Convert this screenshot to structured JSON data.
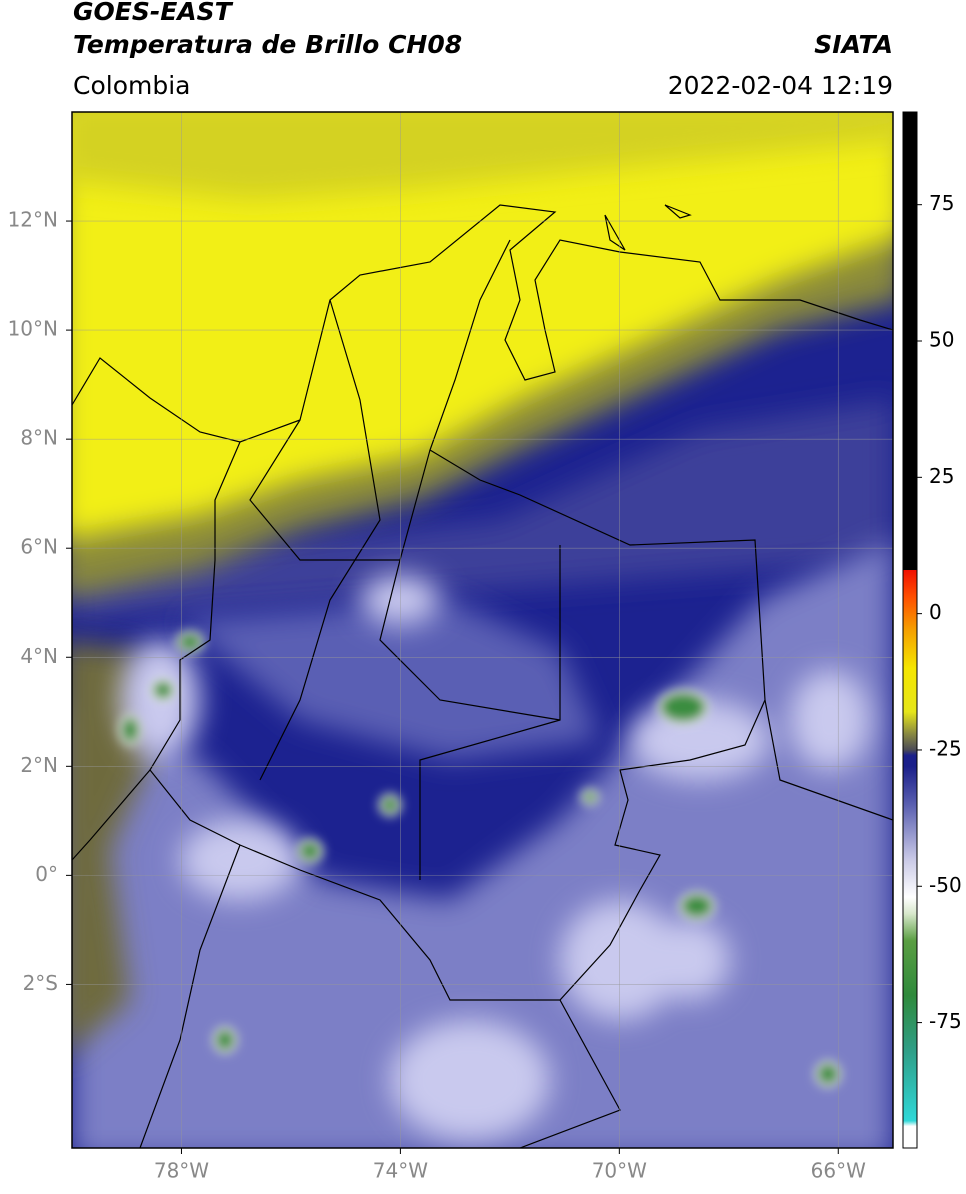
{
  "header": {
    "title": "GOES-EAST",
    "subtitle": "Temperatura de Brillo CH08",
    "source": "SIATA",
    "region": "Colombia",
    "timestamp": "2022-02-04 12:19"
  },
  "map": {
    "xlim": [
      -80,
      -65
    ],
    "ylim": [
      -5,
      14
    ],
    "grid": true,
    "xticks": [
      {
        "value": -78,
        "label": "78°W"
      },
      {
        "value": -74,
        "label": "74°W"
      },
      {
        "value": -70,
        "label": "70°W"
      },
      {
        "value": -66,
        "label": "66°W"
      }
    ],
    "yticks": [
      {
        "value": 12,
        "label": "12°N"
      },
      {
        "value": 10,
        "label": "10°N"
      },
      {
        "value": 8,
        "label": "8°N"
      },
      {
        "value": 6,
        "label": "6°N"
      },
      {
        "value": 4,
        "label": "4°N"
      },
      {
        "value": 2,
        "label": "2°N"
      },
      {
        "value": 0,
        "label": "0°"
      },
      {
        "value": -2,
        "label": "2°S"
      }
    ]
  },
  "colorbar": {
    "lim": [
      -98,
      92
    ],
    "ticks": [
      75,
      50,
      25,
      0,
      -25,
      -50,
      -75
    ],
    "stops": [
      {
        "value": -98,
        "color": "#ffffff"
      },
      {
        "value": -94,
        "color": "#ffffff"
      },
      {
        "value": -93,
        "color": "#2fd8d8"
      },
      {
        "value": -80,
        "color": "#2f9e86"
      },
      {
        "value": -70,
        "color": "#2f8a3c"
      },
      {
        "value": -60,
        "color": "#5a9e42"
      },
      {
        "value": -55,
        "color": "#d8e8cc"
      },
      {
        "value": -52,
        "color": "#ffffff"
      },
      {
        "value": -45,
        "color": "#c8c8e6"
      },
      {
        "value": -35,
        "color": "#5a5fb0"
      },
      {
        "value": -28,
        "color": "#1a1f8a"
      },
      {
        "value": -26,
        "color": "#1a1f8a"
      },
      {
        "value": -25,
        "color": "#4a4a55"
      },
      {
        "value": -22,
        "color": "#8a8a40"
      },
      {
        "value": -18,
        "color": "#e6e61a"
      },
      {
        "value": -10,
        "color": "#f5e600"
      },
      {
        "value": -3,
        "color": "#f5a000"
      },
      {
        "value": 3,
        "color": "#ff5000"
      },
      {
        "value": 8,
        "color": "#f01000"
      },
      {
        "value": 8,
        "color": "#000000"
      },
      {
        "value": 92,
        "color": "#000000"
      }
    ]
  }
}
